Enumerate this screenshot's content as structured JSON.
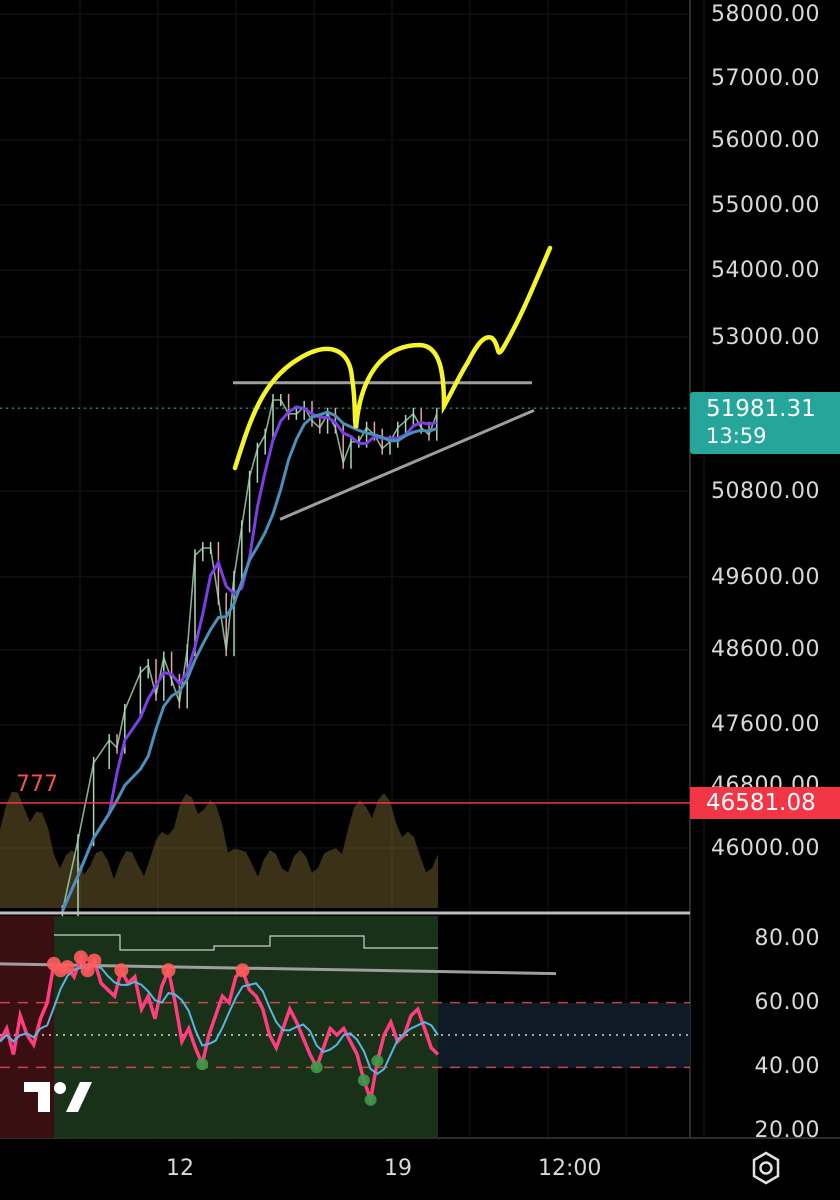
{
  "chart_data": [
    {
      "type": "candlestick",
      "title": "",
      "y_axis": {
        "ticks": [
          "58000.00",
          "57000.00",
          "56000.00",
          "55000.00",
          "54000.00",
          "53000.00",
          "50800.00",
          "49600.00",
          "48600.00",
          "47600.00",
          "46800.00",
          "46000.00"
        ],
        "scale": "log"
      },
      "x_axis": {
        "ticks": [
          "12",
          "19",
          "12:00"
        ]
      },
      "current_price": {
        "value": "51981.31",
        "countdown": "13:59",
        "color": "#26a69a"
      },
      "horizontal_line": {
        "value": "46581.08",
        "label": "777",
        "color": "#f23645"
      },
      "price_path": [
        [
          0.08,
          45200
        ],
        [
          0.1,
          46100
        ],
        [
          0.12,
          47100
        ],
        [
          0.14,
          47400
        ],
        [
          0.15,
          47300
        ],
        [
          0.16,
          47800
        ],
        [
          0.18,
          48300
        ],
        [
          0.19,
          48400
        ],
        [
          0.2,
          48000
        ],
        [
          0.21,
          48500
        ],
        [
          0.22,
          48200
        ],
        [
          0.23,
          47900
        ],
        [
          0.24,
          48600
        ],
        [
          0.25,
          49900
        ],
        [
          0.26,
          50000
        ],
        [
          0.27,
          50000
        ],
        [
          0.28,
          49300
        ],
        [
          0.29,
          48600
        ],
        [
          0.3,
          49600
        ],
        [
          0.31,
          50300
        ],
        [
          0.32,
          51000
        ],
        [
          0.33,
          51400
        ],
        [
          0.34,
          51600
        ],
        [
          0.35,
          52100
        ],
        [
          0.36,
          52100
        ],
        [
          0.37,
          51900
        ],
        [
          0.38,
          51900
        ],
        [
          0.39,
          52000
        ],
        [
          0.4,
          51800
        ],
        [
          0.41,
          51700
        ],
        [
          0.42,
          51900
        ],
        [
          0.43,
          51700
        ],
        [
          0.44,
          51200
        ],
        [
          0.45,
          51500
        ],
        [
          0.46,
          51500
        ],
        [
          0.47,
          51700
        ],
        [
          0.48,
          51600
        ],
        [
          0.49,
          51400
        ],
        [
          0.5,
          51500
        ],
        [
          0.51,
          51700
        ],
        [
          0.52,
          51800
        ],
        [
          0.53,
          51900
        ],
        [
          0.54,
          51700
        ],
        [
          0.55,
          51600
        ],
        [
          0.56,
          51900
        ]
      ],
      "annotations": [
        {
          "type": "horizontal_segment",
          "value": 52350,
          "color": "#9e9e9e"
        },
        {
          "type": "trendline",
          "from": 50400,
          "to": 51950,
          "color": "#9e9e9e"
        },
        {
          "type": "freehand_projection",
          "color": "#f5f52a"
        }
      ]
    },
    {
      "type": "line",
      "title": "",
      "y_axis": {
        "ticks": [
          "80.00",
          "60.00",
          "40.00",
          "20.00"
        ],
        "range": [
          20,
          80
        ]
      },
      "levels": [
        60,
        50,
        40
      ],
      "trendline": {
        "from": 72,
        "to": 69
      },
      "series": [
        {
          "values": [
            48,
            52,
            44,
            56,
            50,
            47,
            55,
            60,
            72,
            70,
            71,
            68,
            74,
            70,
            73,
            66,
            64,
            62,
            70,
            66,
            68,
            58,
            62,
            55,
            65,
            70,
            60,
            48,
            52,
            46,
            41,
            50,
            56,
            62,
            60,
            68,
            70,
            64,
            62,
            58,
            50,
            46,
            52,
            58,
            54,
            49,
            44,
            40,
            46,
            52,
            50,
            52,
            48,
            44,
            36,
            30,
            42,
            50,
            54,
            48,
            50,
            56,
            58,
            52,
            46,
            44
          ]
        }
      ]
    }
  ],
  "logo": "tradingview-logo",
  "settings_icon": "gear-icon"
}
